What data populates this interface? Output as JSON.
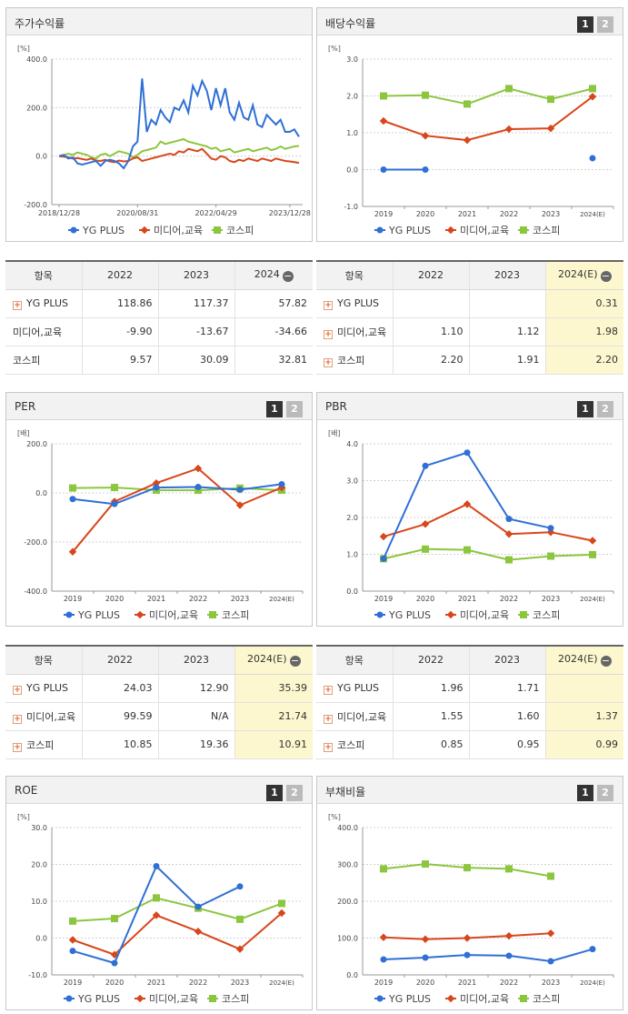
{
  "legend": [
    "YG PLUS",
    "미디어,교육",
    "코스피"
  ],
  "colors": [
    "#2f6fd6",
    "#d8461b",
    "#8cc63f"
  ],
  "panels": [
    {
      "title": "주가수익률",
      "unit": "[%]",
      "buttons": [],
      "chart": {
        "type": "line",
        "ylim": [
          -200,
          400
        ],
        "yticks": [
          "400.0",
          "200.0",
          "0.0",
          "-200.0"
        ],
        "xticks": [
          "2018/12/28",
          "2020/08/31",
          "2022/04/29",
          "2023/12/28"
        ]
      }
    },
    {
      "title": "배당수익률",
      "unit": "[%]",
      "buttons": [
        "1",
        "2"
      ],
      "chart": {
        "type": "line",
        "ylim": [
          -1,
          3
        ],
        "yticks": [
          "3.0",
          "2.0",
          "1.0",
          "0.0",
          "-1.0"
        ],
        "xticks": [
          "2019",
          "2020",
          "2021",
          "2022",
          "2023",
          "2024(E)"
        ]
      }
    },
    {
      "title": "PER",
      "unit": "[배]",
      "buttons": [
        "1",
        "2"
      ],
      "chart": {
        "type": "line",
        "ylim": [
          -400,
          200
        ],
        "yticks": [
          "200.0",
          "0.0",
          "-200.0",
          "-400.0"
        ],
        "xticks": [
          "2019",
          "2020",
          "2021",
          "2022",
          "2023",
          "2024(E)"
        ]
      }
    },
    {
      "title": "PBR",
      "unit": "[배]",
      "buttons": [
        "1",
        "2"
      ],
      "chart": {
        "type": "line",
        "ylim": [
          0,
          4
        ],
        "yticks": [
          "4.0",
          "3.0",
          "2.0",
          "1.0",
          "0.0"
        ],
        "xticks": [
          "2019",
          "2020",
          "2021",
          "2022",
          "2023",
          "2024(E)"
        ]
      }
    },
    {
      "title": "ROE",
      "unit": "[%]",
      "buttons": [
        "1",
        "2"
      ],
      "chart": {
        "type": "line",
        "ylim": [
          -10,
          30
        ],
        "yticks": [
          "30.0",
          "20.0",
          "10.0",
          "0.0",
          "-10.0"
        ],
        "xticks": [
          "2019",
          "2020",
          "2021",
          "2022",
          "2023",
          "2024(E)"
        ]
      }
    },
    {
      "title": "부채비율",
      "unit": "[%]",
      "buttons": [
        "1",
        "2"
      ],
      "chart": {
        "type": "line",
        "ylim": [
          0,
          400
        ],
        "yticks": [
          "400.0",
          "300.0",
          "200.0",
          "100.0",
          "0.0"
        ],
        "xticks": [
          "2019",
          "2020",
          "2021",
          "2022",
          "2023",
          "2024(E)"
        ]
      }
    }
  ],
  "chart_data": [
    {
      "type": "line",
      "title": "주가수익률",
      "ylabel": "[%]",
      "ylim": [
        -200,
        400
      ],
      "x_ticks": [
        "2018/12/28",
        "2020/08/31",
        "2022/04/29",
        "2023/12/28"
      ],
      "series": [
        {
          "name": "YG PLUS",
          "values": [
            0,
            5,
            -10,
            -5,
            -30,
            -35,
            -30,
            -25,
            -20,
            -40,
            -20,
            -15,
            -20,
            -30,
            -50,
            -20,
            40,
            60,
            320,
            100,
            150,
            130,
            190,
            160,
            140,
            200,
            190,
            230,
            180,
            290,
            250,
            310,
            270,
            190,
            280,
            210,
            280,
            180,
            150,
            220,
            160,
            150,
            210,
            130,
            120,
            170,
            150,
            130,
            150,
            100,
            100,
            110,
            80
          ]
        },
        {
          "name": "미디어,교육",
          "values": [
            0,
            -2,
            -5,
            -10,
            -8,
            -12,
            -15,
            -10,
            -18,
            -20,
            -15,
            -22,
            -25,
            -18,
            -22,
            -20,
            -10,
            -5,
            -20,
            -15,
            -10,
            -5,
            0,
            5,
            10,
            5,
            20,
            15,
            30,
            25,
            20,
            30,
            10,
            -10,
            -15,
            0,
            -5,
            -20,
            -25,
            -15,
            -20,
            -10,
            -15,
            -20,
            -10,
            -15,
            -20,
            -10,
            -15,
            -20,
            -22,
            -25,
            -28
          ]
        },
        {
          "name": "코스피",
          "values": [
            0,
            5,
            10,
            5,
            15,
            10,
            5,
            -5,
            -10,
            5,
            10,
            0,
            10,
            20,
            15,
            10,
            -5,
            5,
            20,
            25,
            30,
            35,
            60,
            50,
            55,
            60,
            65,
            70,
            60,
            55,
            50,
            45,
            40,
            30,
            35,
            20,
            25,
            30,
            15,
            20,
            25,
            30,
            20,
            25,
            30,
            35,
            25,
            30,
            40,
            30,
            35,
            40,
            42
          ]
        }
      ]
    },
    {
      "type": "line",
      "title": "배당수익률",
      "ylabel": "[%]",
      "ylim": [
        -1,
        3
      ],
      "x": [
        "2019",
        "2020",
        "2021",
        "2022",
        "2023",
        "2024(E)"
      ],
      "series": [
        {
          "name": "YG PLUS",
          "values": [
            0,
            0,
            null,
            null,
            null,
            0.31
          ]
        },
        {
          "name": "미디어,교육",
          "values": [
            1.32,
            0.92,
            0.8,
            1.1,
            1.12,
            1.98
          ]
        },
        {
          "name": "코스피",
          "values": [
            2.0,
            2.02,
            1.78,
            2.2,
            1.91,
            2.2
          ]
        }
      ]
    },
    {
      "type": "line",
      "title": "PER",
      "ylabel": "[배]",
      "ylim": [
        -400,
        200
      ],
      "x": [
        "2019",
        "2020",
        "2021",
        "2022",
        "2023",
        "2024(E)"
      ],
      "series": [
        {
          "name": "YG PLUS",
          "values": [
            -25,
            -45,
            22,
            24.03,
            12.9,
            35.39
          ]
        },
        {
          "name": "미디어,교육",
          "values": [
            -240,
            -35,
            40,
            99.59,
            -50,
            21.74
          ]
        },
        {
          "name": "코스피",
          "values": [
            20,
            22,
            11,
            10.85,
            19.36,
            10.91
          ]
        }
      ]
    },
    {
      "type": "line",
      "title": "PBR",
      "ylabel": "[배]",
      "ylim": [
        0,
        4
      ],
      "x": [
        "2019",
        "2020",
        "2021",
        "2022",
        "2023",
        "2024(E)"
      ],
      "series": [
        {
          "name": "YG PLUS",
          "values": [
            0.88,
            3.4,
            3.76,
            1.96,
            1.71,
            null
          ]
        },
        {
          "name": "미디어,교육",
          "values": [
            1.48,
            1.82,
            2.36,
            1.55,
            1.6,
            1.37
          ]
        },
        {
          "name": "코스피",
          "values": [
            0.88,
            1.14,
            1.12,
            0.85,
            0.95,
            0.99
          ]
        }
      ]
    },
    {
      "type": "line",
      "title": "ROE",
      "ylabel": "[%]",
      "ylim": [
        -10,
        30
      ],
      "x": [
        "2019",
        "2020",
        "2021",
        "2022",
        "2023",
        "2024(E)"
      ],
      "series": [
        {
          "name": "YG PLUS",
          "values": [
            -3.5,
            -6.8,
            19.5,
            8.5,
            14.0,
            null
          ]
        },
        {
          "name": "미디어,교육",
          "values": [
            -0.5,
            -4.5,
            6.2,
            1.8,
            -3.0,
            6.8
          ]
        },
        {
          "name": "코스피",
          "values": [
            4.6,
            5.3,
            10.9,
            8.1,
            5.1,
            9.4
          ]
        }
      ]
    },
    {
      "type": "line",
      "title": "부채비율",
      "ylabel": "[%]",
      "ylim": [
        0,
        400
      ],
      "x": [
        "2019",
        "2020",
        "2021",
        "2022",
        "2023",
        "2024(E)"
      ],
      "series": [
        {
          "name": "YG PLUS",
          "values": [
            42,
            47,
            54,
            52,
            37,
            70
          ]
        },
        {
          "name": "미디어,교육",
          "values": [
            102,
            97,
            100,
            106,
            113,
            null
          ]
        },
        {
          "name": "코스피",
          "values": [
            288,
            301,
            291,
            288,
            268,
            null
          ]
        }
      ]
    }
  ],
  "tables": [
    {
      "cols": [
        "항목",
        "2022",
        "2023",
        "2024"
      ],
      "est_col": -1,
      "minus_col": 3,
      "rows": [
        [
          "YG PLUS",
          "118.86",
          "117.37",
          "57.82"
        ],
        [
          "미디어,교육",
          "-9.90",
          "-13.67",
          "-34.66"
        ],
        [
          "코스피",
          "9.57",
          "30.09",
          "32.81"
        ]
      ],
      "plus": [
        true,
        false,
        false
      ]
    },
    {
      "cols": [
        "항목",
        "2022",
        "2023",
        "2024(E)"
      ],
      "est_col": 3,
      "minus_col": 3,
      "rows": [
        [
          "YG PLUS",
          "",
          "",
          "0.31"
        ],
        [
          "미디어,교육",
          "1.10",
          "1.12",
          "1.98"
        ],
        [
          "코스피",
          "2.20",
          "1.91",
          "2.20"
        ]
      ],
      "plus": [
        true,
        true,
        true
      ]
    },
    {
      "cols": [
        "항목",
        "2022",
        "2023",
        "2024(E)"
      ],
      "est_col": 3,
      "minus_col": 3,
      "rows": [
        [
          "YG PLUS",
          "24.03",
          "12.90",
          "35.39"
        ],
        [
          "미디어,교육",
          "99.59",
          "N/A",
          "21.74"
        ],
        [
          "코스피",
          "10.85",
          "19.36",
          "10.91"
        ]
      ],
      "plus": [
        true,
        true,
        true
      ]
    },
    {
      "cols": [
        "항목",
        "2022",
        "2023",
        "2024(E)"
      ],
      "est_col": 3,
      "minus_col": 3,
      "rows": [
        [
          "YG PLUS",
          "1.96",
          "1.71",
          ""
        ],
        [
          "미디어,교육",
          "1.55",
          "1.60",
          "1.37"
        ],
        [
          "코스피",
          "0.85",
          "0.95",
          "0.99"
        ]
      ],
      "plus": [
        true,
        true,
        true
      ]
    }
  ]
}
